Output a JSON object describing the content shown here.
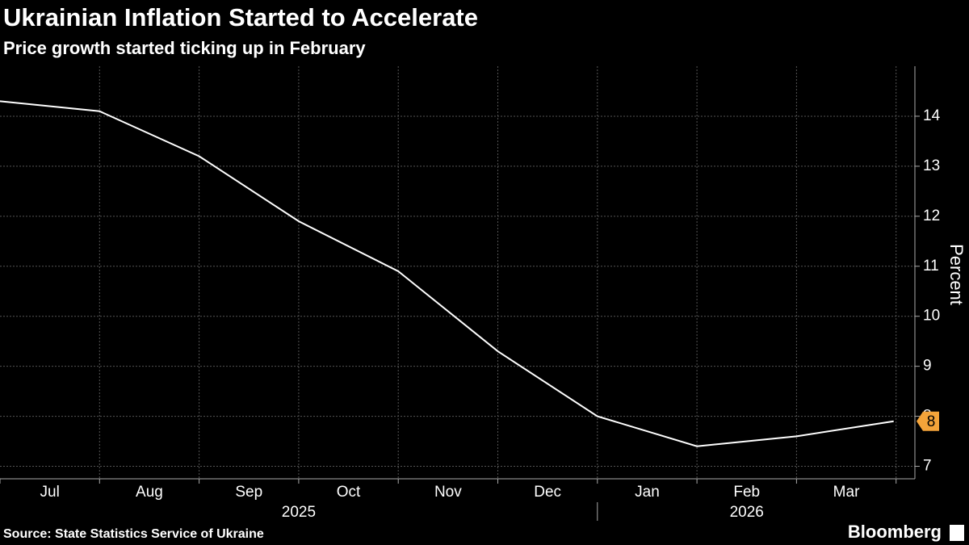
{
  "chart_data": {
    "type": "line",
    "title": "Ukrainian Inflation Started to Accelerate",
    "subtitle": "Price growth started ticking up in February",
    "source": "Source: State Statistics Service of Ukraine",
    "brand": "Bloomberg",
    "y_label": "Percent",
    "categories": [
      null,
      "Jul",
      "Aug",
      "Sep",
      "Oct",
      "Nov",
      "Dec",
      "Jan",
      "Feb",
      "Mar"
    ],
    "years": [
      "2025",
      "2026"
    ],
    "series": [
      {
        "name": "Inflation",
        "color": "#ffffff",
        "values": [
          14.3,
          14.1,
          13.2,
          11.9,
          10.9,
          9.3,
          8.0,
          7.4,
          7.6,
          7.9
        ],
        "value_labels": [
          null,
          null,
          null,
          null,
          null,
          null,
          null,
          null,
          null,
          "8"
        ]
      }
    ],
    "ylim": [
      6.75,
      15
    ],
    "yticks": [
      7,
      8,
      9,
      10,
      11,
      12,
      13,
      14
    ],
    "grid": true,
    "label_color": "#f4a43a"
  }
}
